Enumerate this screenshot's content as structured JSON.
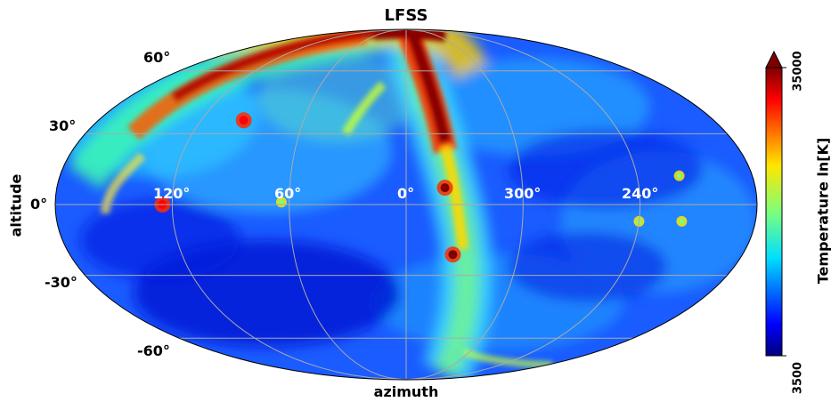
{
  "title": "LFSS",
  "xlabel": "azimuth",
  "ylabel": "altitude",
  "latitude_labels": [
    "60°",
    "30°",
    "0°",
    "-30°",
    "-60°"
  ],
  "longitude_labels": [
    "120°",
    "60°",
    "0°",
    "300°",
    "240°"
  ],
  "colorbar": {
    "label": "Temperature ln[K]",
    "min_label": "3500",
    "max_label": "35000",
    "min": 3500,
    "max": 35000,
    "colormap": "jet",
    "extend": "max"
  },
  "map_data": {
    "projection": "mollweide",
    "graticule_lat_deg": [
      -60,
      -30,
      0,
      30,
      60
    ],
    "graticule_lon_deg": [
      120,
      60,
      0,
      300,
      240
    ],
    "hotspots": [
      {
        "lon": 125,
        "lat": 0,
        "level": 0.95
      },
      {
        "lon": 64,
        "lat": 1,
        "level": 0.6
      },
      {
        "lon": 95,
        "lat": 36,
        "level": 0.9
      },
      {
        "lon": 340,
        "lat": 7,
        "level": 1.0
      },
      {
        "lon": 335,
        "lat": -21,
        "level": 1.0
      },
      {
        "lon": 218,
        "lat": 12,
        "level": 0.55
      },
      {
        "lon": 218,
        "lat": -7,
        "level": 0.5
      },
      {
        "lon": 240,
        "lat": -7,
        "level": 0.5
      }
    ]
  }
}
